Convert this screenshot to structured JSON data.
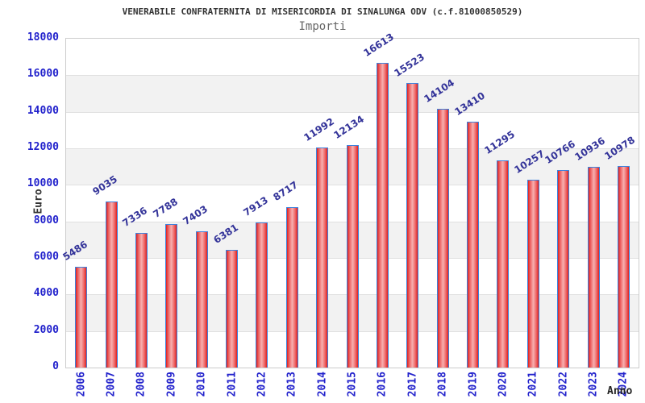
{
  "header": {
    "title": "VENERABILE CONFRATERNITA DI MISERICORDIA DI SINALUNGA ODV (c.f.81000850529)",
    "subtitle": "Importi"
  },
  "y_axis": {
    "title": "Euro",
    "ticks": [
      0,
      2000,
      4000,
      6000,
      8000,
      10000,
      12000,
      14000,
      16000,
      18000
    ]
  },
  "x_axis": {
    "title": "Anno"
  },
  "colors": {
    "axis_text": "#2222cc",
    "value_label": "#333399",
    "bar_fill_edge": "#dd2222",
    "bar_fill_center": "#f7b0b0",
    "bar_border": "#3d82dd",
    "band_gray": "#f2f2f2",
    "grid_line": "#e0e0e0",
    "plot_border": "#cccccc",
    "title_text": "#333333",
    "subtitle_text": "#666666"
  },
  "chart_data": {
    "type": "bar",
    "title": "VENERABILE CONFRATERNITA DI MISERICORDIA DI SINALUNGA ODV (c.f.81000850529)",
    "subtitle": "Importi",
    "xlabel": "Anno",
    "ylabel": "Euro",
    "ylim": [
      0,
      18000
    ],
    "grid": true,
    "legend_position": "none",
    "categories": [
      "2006",
      "2007",
      "2008",
      "2009",
      "2010",
      "2011",
      "2012",
      "2013",
      "2014",
      "2015",
      "2016",
      "2017",
      "2018",
      "2019",
      "2020",
      "2021",
      "2022",
      "2023",
      "2024"
    ],
    "values": [
      5486,
      9035,
      7336,
      7788,
      7403,
      6381,
      7913,
      8717,
      11992,
      12134,
      16613,
      15523,
      14104,
      13410,
      11295,
      10257,
      10766,
      10936,
      10978
    ]
  }
}
